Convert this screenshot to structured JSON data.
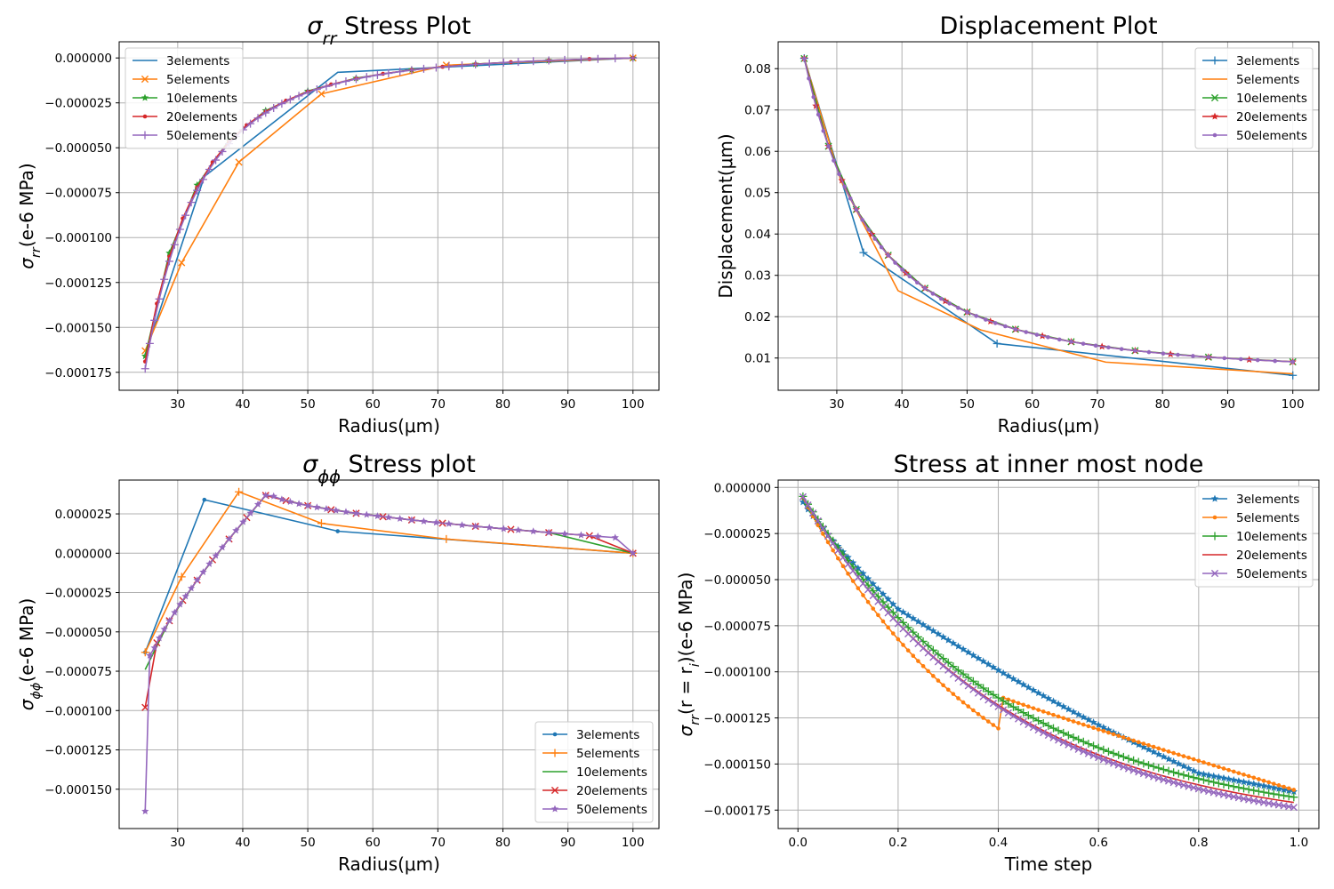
{
  "series_names": [
    "3elements",
    "5elements",
    "10elements",
    "20elements",
    "50elements"
  ],
  "colors": [
    "#1f77b4",
    "#ff7f0e",
    "#2ca02c",
    "#d62728",
    "#9467bd"
  ],
  "chart_data": [
    {
      "type": "line",
      "title_parts": [
        "σ",
        "rr",
        " Stress Plot"
      ],
      "xlabel": "Radius(μm)",
      "ylabel_parts": [
        "σ",
        "rr",
        "(e-6 MPa)"
      ],
      "xlim": [
        21,
        104
      ],
      "ylim": [
        -0.000185,
        9e-06
      ],
      "xticks": [
        30,
        40,
        50,
        60,
        70,
        80,
        90,
        100
      ],
      "yticks": [
        0,
        -2.5e-05,
        -5e-05,
        -7.5e-05,
        -0.0001,
        -0.000125,
        -0.00015,
        -0.000175
      ],
      "ytick_labels": [
        "0.000000",
        "−0.000025",
        "−0.000050",
        "−0.000075",
        "−0.000100",
        "−0.000125",
        "−0.000150",
        "−0.000175"
      ],
      "legend": "upper-left",
      "series": [
        {
          "name": "3elements",
          "marker": "none",
          "x": [
            25,
            34.1,
            54.6,
            100
          ],
          "y": [
            -0.000165,
            -6.6e-05,
            -8e-06,
            0
          ]
        },
        {
          "name": "5elements",
          "marker": "x",
          "x": [
            25,
            30.6,
            39.4,
            52.1,
            71.3,
            100
          ],
          "y": [
            -0.000163,
            -0.000114,
            -5.8e-05,
            -2e-05,
            -4e-06,
            0
          ]
        },
        {
          "name": "10elements",
          "marker": "star",
          "gen": {
            "n": 10,
            "model": "sigma_rr",
            "amp": -0.000166
          }
        },
        {
          "name": "20elements",
          "marker": "dot",
          "gen": {
            "n": 20,
            "model": "sigma_rr",
            "amp": -0.000169
          }
        },
        {
          "name": "50elements",
          "marker": "plus",
          "gen": {
            "n": 50,
            "model": "sigma_rr",
            "amp": -0.000173
          }
        }
      ]
    },
    {
      "type": "line",
      "title_parts": [
        "Displacement Plot"
      ],
      "xlabel": "Radius(μm)",
      "ylabel_parts": [
        "Displacement(μm)"
      ],
      "xlim": [
        21,
        104
      ],
      "ylim": [
        0.0022,
        0.0865
      ],
      "xticks": [
        30,
        40,
        50,
        60,
        70,
        80,
        90,
        100
      ],
      "yticks": [
        0.01,
        0.02,
        0.03,
        0.04,
        0.05,
        0.06,
        0.07,
        0.08
      ],
      "ytick_labels": [
        "0.01",
        "0.02",
        "0.03",
        "0.04",
        "0.05",
        "0.06",
        "0.07",
        "0.08"
      ],
      "legend": "upper-right",
      "series": [
        {
          "name": "3elements",
          "marker": "plus",
          "x": [
            25,
            34.1,
            54.6,
            100
          ],
          "y": [
            0.0825,
            0.0355,
            0.0135,
            0.0058
          ]
        },
        {
          "name": "5elements",
          "marker": "none",
          "x": [
            25,
            30.6,
            39.4,
            52.1,
            71.3,
            100
          ],
          "y": [
            0.0825,
            0.053,
            0.0263,
            0.0168,
            0.009,
            0.0062
          ]
        },
        {
          "name": "10elements",
          "marker": "x",
          "gen": {
            "n": 10,
            "model": "disp"
          }
        },
        {
          "name": "20elements",
          "marker": "star",
          "gen": {
            "n": 20,
            "model": "disp"
          }
        },
        {
          "name": "50elements",
          "marker": "dot",
          "gen": {
            "n": 50,
            "model": "disp"
          }
        }
      ]
    },
    {
      "type": "line",
      "title_parts": [
        "σ",
        "ϕϕ",
        " Stress plot"
      ],
      "xlabel": "Radius(μm)",
      "ylabel_parts": [
        "σ",
        "ϕϕ",
        "(e-6 MPa)"
      ],
      "xlim": [
        21,
        104
      ],
      "ylim": [
        -0.000175,
        4.65e-05
      ],
      "xticks": [
        30,
        40,
        50,
        60,
        70,
        80,
        90,
        100
      ],
      "yticks": [
        2.5e-05,
        0,
        -2.5e-05,
        -5e-05,
        -7.5e-05,
        -0.0001,
        -0.000125,
        -0.00015
      ],
      "ytick_labels": [
        "0.000025",
        "0.000000",
        "−0.000025",
        "−0.000050",
        "−0.000075",
        "−0.000100",
        "−0.000125",
        "−0.000150"
      ],
      "legend": "lower-right",
      "series": [
        {
          "name": "3elements",
          "marker": "dot",
          "x": [
            25,
            34.1,
            54.6,
            100
          ],
          "y": [
            -6.3e-05,
            3.4e-05,
            1.4e-05,
            0
          ]
        },
        {
          "name": "5elements",
          "marker": "plus",
          "x": [
            25,
            30.6,
            39.4,
            52.1,
            71.3,
            100
          ],
          "y": [
            -6.3e-05,
            -1.5e-05,
            3.9e-05,
            1.9e-05,
            9e-06,
            0
          ]
        },
        {
          "name": "10elements",
          "marker": "none",
          "gen": {
            "n": 10,
            "model": "sigma_pp",
            "start": -7.4e-05
          }
        },
        {
          "name": "20elements",
          "marker": "x",
          "gen": {
            "n": 20,
            "model": "sigma_pp",
            "start": -9.8e-05
          }
        },
        {
          "name": "50elements",
          "marker": "star",
          "gen": {
            "n": 50,
            "model": "sigma_pp",
            "start": -0.000164
          }
        }
      ]
    },
    {
      "type": "line",
      "title_parts": [
        "Stress at inner most node"
      ],
      "xlabel": "Time step",
      "ylabel_parts": [
        "σ",
        "rr",
        "(r = r",
        "i",
        ")(e-6 MPa)"
      ],
      "xlim": [
        -0.0395,
        1.04
      ],
      "ylim": [
        -0.000185,
        4e-06
      ],
      "xticks": [
        0,
        0.2,
        0.4,
        0.6,
        0.8,
        1.0
      ],
      "xtick_labels": [
        "0.0",
        "0.2",
        "0.4",
        "0.6",
        "0.8",
        "1.0"
      ],
      "yticks": [
        0,
        -2.5e-05,
        -5e-05,
        -7.5e-05,
        -0.0001,
        -0.000125,
        -0.00015,
        -0.000175
      ],
      "ytick_labels": [
        "0.000000",
        "−0.000025",
        "−0.000050",
        "−0.000075",
        "−0.000100",
        "−0.000125",
        "−0.000150",
        "−0.000175"
      ],
      "legend": "upper-right",
      "series": [
        {
          "name": "3elements",
          "marker": "star",
          "gen": {
            "model": "time",
            "kind": "three",
            "n": 99
          }
        },
        {
          "name": "5elements",
          "marker": "dot",
          "gen": {
            "model": "time",
            "kind": "five",
            "n": 99
          }
        },
        {
          "name": "10elements",
          "marker": "plus",
          "gen": {
            "model": "time",
            "kind": "exp",
            "n": 99,
            "A": -0.000185,
            "t0": 0.42
          }
        },
        {
          "name": "20elements",
          "marker": "none",
          "gen": {
            "model": "time",
            "kind": "exp",
            "n": 99,
            "A": -0.000186,
            "t0": 0.4
          }
        },
        {
          "name": "50elements",
          "marker": "x",
          "gen": {
            "model": "time",
            "kind": "exp",
            "n": 99,
            "A": -0.00019,
            "t0": 0.41
          }
        }
      ]
    }
  ]
}
